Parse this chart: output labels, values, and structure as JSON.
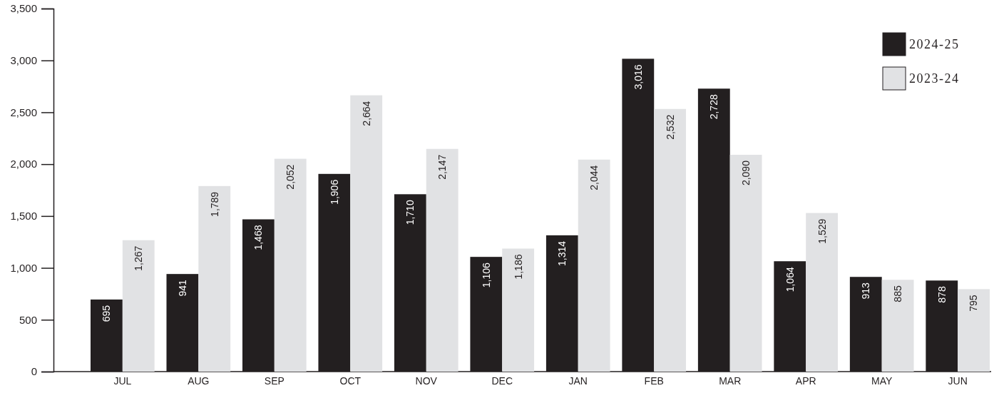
{
  "chart_data": {
    "type": "bar",
    "categories": [
      "JUL",
      "AUG",
      "SEP",
      "OCT",
      "NOV",
      "DEC",
      "JAN",
      "FEB",
      "MAR",
      "APR",
      "MAY",
      "JUN"
    ],
    "series": [
      {
        "name": "2024-25",
        "color": "#231f20",
        "values": [
          695,
          941,
          1468,
          1906,
          1710,
          1106,
          1314,
          3016,
          2728,
          1064,
          913,
          878
        ],
        "value_labels": [
          "695",
          "941",
          "1,468",
          "1,906",
          "1,710",
          "1,106",
          "1,314",
          "3,016",
          "2,728",
          "1,064",
          "913",
          "878"
        ]
      },
      {
        "name": "2023-24",
        "color": "#e1e2e4",
        "values": [
          1267,
          1789,
          2052,
          2664,
          2147,
          1186,
          2044,
          2532,
          2090,
          1529,
          885,
          795
        ],
        "value_labels": [
          "1,267",
          "1,789",
          "2,052",
          "2,664",
          "2,147",
          "1,186",
          "2,044",
          "2,532",
          "2,090",
          "1,529",
          "885",
          "795"
        ]
      }
    ],
    "ylim": [
      0,
      3500
    ],
    "yticks": [
      0,
      500,
      {
        "value": 1000,
        "label": "1,000"
      },
      {
        "value": 1500,
        "label": "1,500"
      },
      {
        "value": 2000,
        "label": "2,000"
      },
      {
        "value": 2500,
        "label": "2,500"
      },
      {
        "value": 3000,
        "label": "3,000"
      },
      {
        "value": 3500,
        "label": "3,500"
      }
    ],
    "legend": "top right",
    "grid": false
  }
}
